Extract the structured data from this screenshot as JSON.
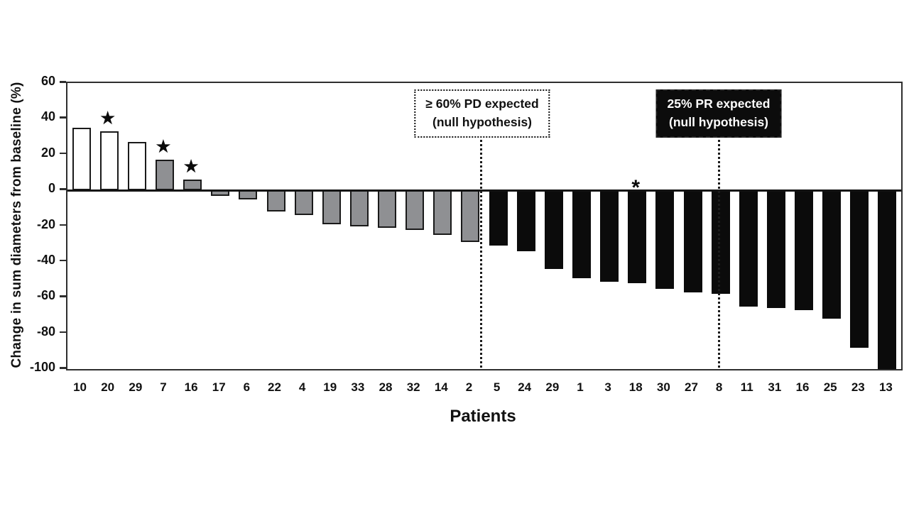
{
  "chart_data": {
    "type": "bar",
    "title": "",
    "xlabel": "Patients",
    "ylabel": "Change in sum diameters from baseline (%)",
    "ylim": [
      -100,
      60
    ],
    "y_ticks": [
      60,
      40,
      20,
      0,
      -20,
      -40,
      -60,
      -80,
      -100
    ],
    "grid": false,
    "legend": "none",
    "bars": [
      {
        "label": "10",
        "value": 35,
        "group": "white",
        "star": ""
      },
      {
        "label": "20",
        "value": 33,
        "group": "white",
        "star": "★"
      },
      {
        "label": "29",
        "value": 27,
        "group": "white",
        "star": ""
      },
      {
        "label": "7",
        "value": 17,
        "group": "gray",
        "star": "★"
      },
      {
        "label": "16",
        "value": 6,
        "group": "gray",
        "star": "★"
      },
      {
        "label": "17",
        "value": -3,
        "group": "gray",
        "star": ""
      },
      {
        "label": "6",
        "value": -5,
        "group": "gray",
        "star": ""
      },
      {
        "label": "22",
        "value": -12,
        "group": "gray",
        "star": ""
      },
      {
        "label": "4",
        "value": -14,
        "group": "gray",
        "star": ""
      },
      {
        "label": "19",
        "value": -19,
        "group": "gray",
        "star": ""
      },
      {
        "label": "33",
        "value": -20,
        "group": "gray",
        "star": ""
      },
      {
        "label": "28",
        "value": -21,
        "group": "gray",
        "star": ""
      },
      {
        "label": "32",
        "value": -22,
        "group": "gray",
        "star": ""
      },
      {
        "label": "14",
        "value": -25,
        "group": "gray",
        "star": ""
      },
      {
        "label": "2",
        "value": -29,
        "group": "gray",
        "star": ""
      },
      {
        "label": "5",
        "value": -31,
        "group": "black",
        "star": ""
      },
      {
        "label": "24",
        "value": -34,
        "group": "black",
        "star": ""
      },
      {
        "label": "29",
        "value": -44,
        "group": "black",
        "star": ""
      },
      {
        "label": "1",
        "value": -49,
        "group": "black",
        "star": ""
      },
      {
        "label": "3",
        "value": -51,
        "group": "black",
        "star": ""
      },
      {
        "label": "18",
        "value": -52,
        "group": "black",
        "star": "*"
      },
      {
        "label": "30",
        "value": -55,
        "group": "black",
        "star": ""
      },
      {
        "label": "27",
        "value": -57,
        "group": "black",
        "star": ""
      },
      {
        "label": "8",
        "value": -58,
        "group": "black",
        "star": ""
      },
      {
        "label": "11",
        "value": -65,
        "group": "black",
        "star": ""
      },
      {
        "label": "31",
        "value": -66,
        "group": "black",
        "star": ""
      },
      {
        "label": "16",
        "value": -67,
        "group": "black",
        "star": ""
      },
      {
        "label": "25",
        "value": -72,
        "group": "black",
        "star": ""
      },
      {
        "label": "23",
        "value": -88,
        "group": "black",
        "star": ""
      },
      {
        "label": "13",
        "value": -100,
        "group": "black",
        "star": ""
      }
    ],
    "group_colors": {
      "white": "#ffffff",
      "gray": "#8f9093",
      "black": "#0b0b0b"
    },
    "annotations": [
      {
        "id": "pd",
        "line1": "≥ 60% PD expected",
        "line2": "(null hypothesis)",
        "style": "dotted-white-box",
        "divider_position_bars": 15
      },
      {
        "id": "pr",
        "line1": "25% PR expected",
        "line2": "(null hypothesis)",
        "style": "solid-black-box",
        "divider_position_bars": 23.5
      }
    ]
  }
}
